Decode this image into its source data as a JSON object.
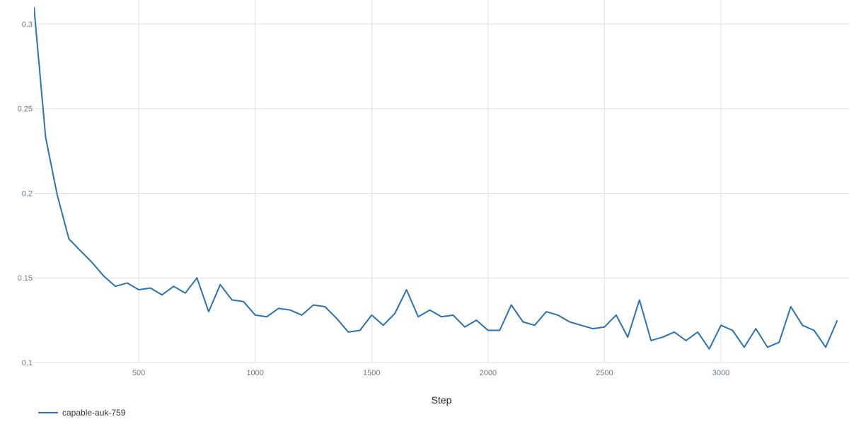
{
  "chart_data": {
    "type": "line",
    "title": "",
    "xlabel": "Step",
    "ylabel": "",
    "xlim": [
      50,
      3550
    ],
    "ylim": [
      0.1,
      0.31
    ],
    "x_ticks": [
      500,
      1000,
      1500,
      2000,
      2500,
      3000
    ],
    "x_tick_labels": [
      "500",
      "1000",
      "1500",
      "2000",
      "2500",
      "3000"
    ],
    "y_ticks": [
      0.1,
      0.15,
      0.2,
      0.25,
      0.3
    ],
    "y_tick_labels": [
      "0.1",
      "0.15",
      "0.2",
      "0.25",
      "0.3"
    ],
    "grid": true,
    "legend_position": "bottom-left",
    "series": [
      {
        "name": "capable-auk-759",
        "color": "#2a72b5",
        "x": [
          50,
          100,
          150,
          200,
          250,
          300,
          350,
          400,
          450,
          500,
          550,
          600,
          650,
          700,
          750,
          800,
          850,
          900,
          950,
          1000,
          1050,
          1100,
          1150,
          1200,
          1250,
          1300,
          1350,
          1400,
          1450,
          1500,
          1550,
          1600,
          1650,
          1700,
          1750,
          1800,
          1850,
          1900,
          1950,
          2000,
          2050,
          2100,
          2150,
          2200,
          2250,
          2300,
          2350,
          2400,
          2450,
          2500,
          2550,
          2600,
          2650,
          2700,
          2750,
          2800,
          2850,
          2900,
          2950,
          3000,
          3050,
          3100,
          3150,
          3200,
          3250,
          3300,
          3350,
          3400,
          3450,
          3500
        ],
        "y": [
          0.31,
          0.233,
          0.199,
          0.173,
          0.166,
          0.159,
          0.151,
          0.145,
          0.147,
          0.143,
          0.144,
          0.14,
          0.145,
          0.141,
          0.15,
          0.13,
          0.146,
          0.137,
          0.136,
          0.128,
          0.127,
          0.132,
          0.131,
          0.128,
          0.134,
          0.133,
          0.126,
          0.118,
          0.119,
          0.128,
          0.122,
          0.129,
          0.143,
          0.127,
          0.131,
          0.127,
          0.128,
          0.121,
          0.125,
          0.119,
          0.119,
          0.134,
          0.124,
          0.122,
          0.13,
          0.128,
          0.124,
          0.122,
          0.12,
          0.121,
          0.128,
          0.115,
          0.137,
          0.113,
          0.115,
          0.118,
          0.113,
          0.118,
          0.108,
          0.122,
          0.119,
          0.109,
          0.12,
          0.109,
          0.112,
          0.133,
          0.122,
          0.119,
          0.109,
          0.125
        ]
      }
    ]
  }
}
